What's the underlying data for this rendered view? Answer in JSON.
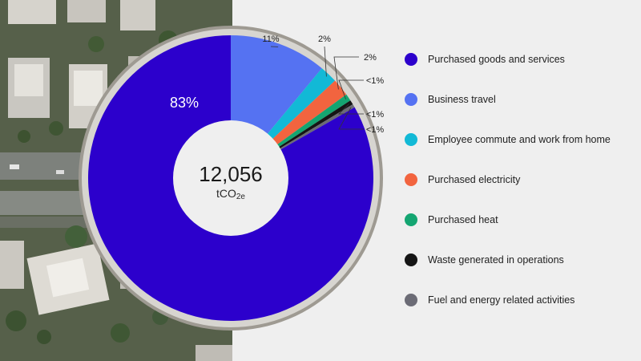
{
  "chart_data": {
    "type": "pie",
    "total": {
      "value": "12,056",
      "unit": "tCO",
      "unit_subscript": "2e"
    },
    "slices": [
      {
        "label": "Purchased goods and services",
        "value": 83,
        "display": "83%",
        "color": "#2c00cc"
      },
      {
        "label": "Business travel",
        "value": 11,
        "display": "11%",
        "color": "#5572f2"
      },
      {
        "label": "Employee commute and work from home",
        "value": 2,
        "display": "2%",
        "color": "#12b9d6"
      },
      {
        "label": "Purchased electricity",
        "value": 2,
        "display": "2%",
        "color": "#f2643f"
      },
      {
        "label": "Purchased heat",
        "value": 0.8,
        "display": "<1%",
        "color": "#14a571"
      },
      {
        "label": "Waste generated in operations",
        "value": 0.5,
        "display": "<1%",
        "color": "#151515"
      },
      {
        "label": "Fuel and energy related activities",
        "value": 0.4,
        "display": "<1%",
        "color": "#6b6b75"
      }
    ],
    "legend_position": "right"
  }
}
